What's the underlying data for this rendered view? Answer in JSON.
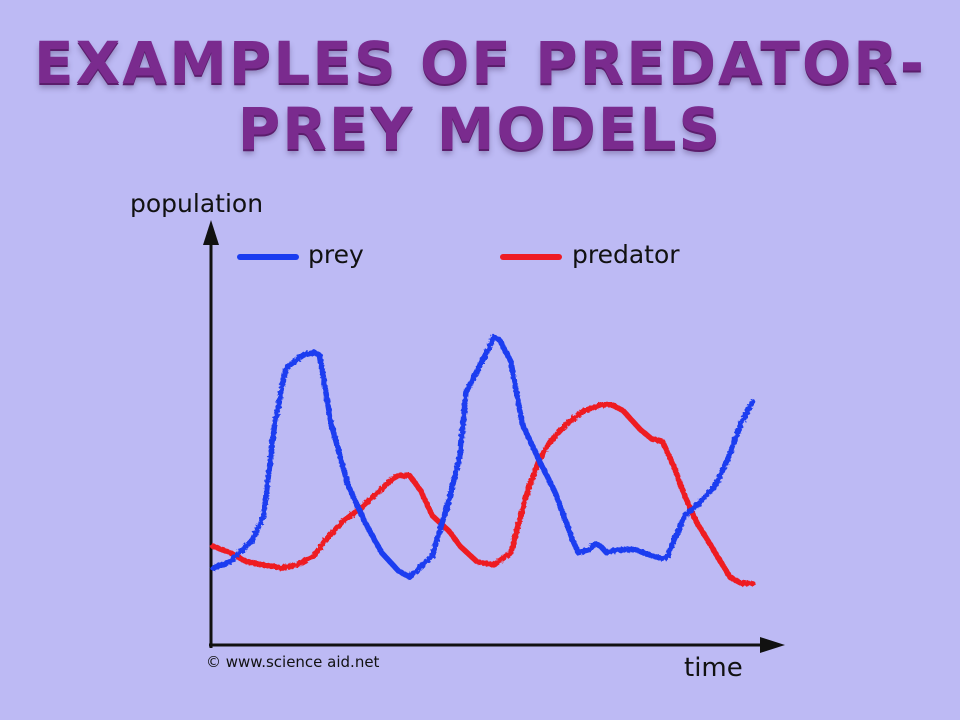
{
  "slide": {
    "title_line1": "Examples of Predator-",
    "title_line2": "Prey Models"
  },
  "chart_data": {
    "type": "line",
    "ylabel": "population",
    "xlabel": "time",
    "credit": "© www.science aid.net",
    "xlim": [
      0,
      100
    ],
    "ylim": [
      0,
      100
    ],
    "grid": false,
    "ticks": false,
    "legend_placement": "top",
    "colors": {
      "prey": "#1a3cf0",
      "predator": "#ee1c24",
      "axis": "#111111"
    },
    "series": [
      {
        "name": "prey",
        "x": [
          0,
          3,
          7,
          9,
          10,
          11,
          13,
          16,
          18,
          19,
          21,
          24,
          27,
          30,
          33,
          35,
          39,
          42,
          44,
          45,
          47,
          49,
          50,
          51,
          53,
          55,
          58,
          61,
          64,
          65,
          67,
          68,
          69,
          70,
          72,
          75,
          78,
          80,
          81,
          82,
          84,
          87,
          89,
          90,
          92,
          94,
          96
        ],
        "y": [
          13,
          15,
          22,
          30,
          45,
          60,
          78,
          82,
          83,
          82,
          60,
          40,
          28,
          18,
          12,
          10,
          17,
          35,
          50,
          70,
          77,
          84,
          88,
          87,
          80,
          60,
          48,
          37,
          22,
          18,
          19,
          21,
          20,
          18,
          19,
          19,
          17,
          16,
          17,
          22,
          30,
          35,
          39,
          42,
          50,
          60,
          67
        ]
      },
      {
        "name": "predator",
        "x": [
          0,
          3,
          6,
          9,
          12,
          15,
          18,
          20,
          23,
          26,
          29,
          32,
          33,
          35,
          37,
          39,
          42,
          44,
          47,
          50,
          53,
          54,
          56,
          58,
          60,
          63,
          66,
          69,
          71,
          73,
          76,
          78,
          80,
          82,
          84,
          86,
          88,
          90,
          92,
          94,
          96
        ],
        "y": [
          20,
          18,
          15,
          14,
          13,
          14,
          17,
          22,
          28,
          32,
          37,
          42,
          43,
          43,
          38,
          30,
          25,
          20,
          15,
          14,
          18,
          25,
          38,
          48,
          54,
          60,
          64,
          66,
          66,
          64,
          58,
          55,
          54,
          46,
          36,
          28,
          22,
          16,
          10,
          8,
          8
        ]
      }
    ]
  }
}
